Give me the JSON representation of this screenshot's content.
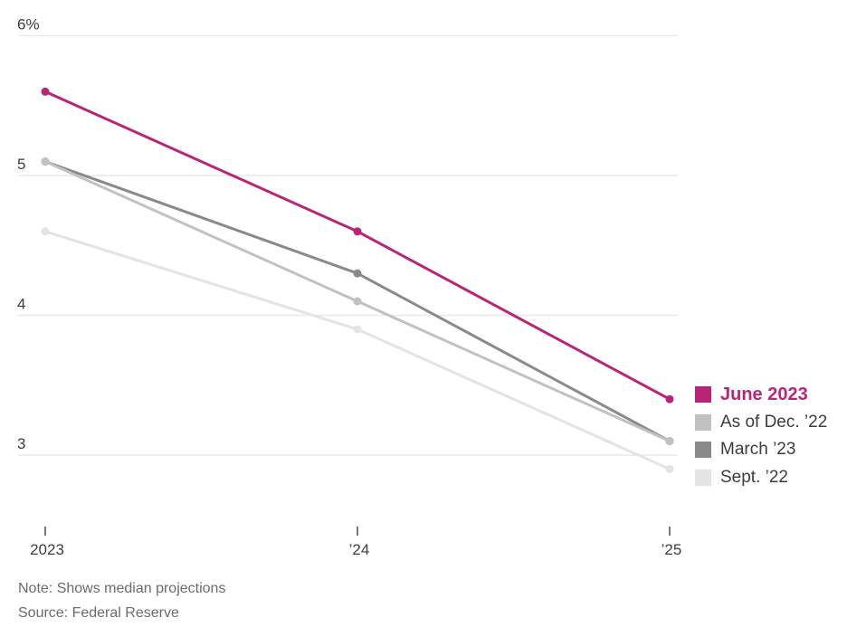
{
  "chart_data": {
    "type": "line",
    "title": "",
    "xlabel": "",
    "ylabel": "",
    "categories": [
      "2023",
      "’24",
      "’25"
    ],
    "ylim": [
      3,
      6
    ],
    "yticks": [
      6,
      5,
      4,
      3
    ],
    "ytick_labels": [
      "6%",
      "5",
      "4",
      "3"
    ],
    "grid": true,
    "legend_position": "right",
    "draw_order": [
      3,
      2,
      1,
      0
    ],
    "series": [
      {
        "name": "June 2023",
        "values": [
          5.6,
          4.6,
          3.4
        ],
        "color": "#ba2478",
        "emphasis": true
      },
      {
        "name": "As of Dec. ’22",
        "values": [
          5.1,
          4.1,
          3.1
        ],
        "color": "#c1c1c1",
        "emphasis": false
      },
      {
        "name": "March ’23",
        "values": [
          5.1,
          4.3,
          3.1
        ],
        "color": "#8a8a8a",
        "emphasis": false
      },
      {
        "name": "Sept. ’22",
        "values": [
          4.6,
          3.9,
          2.9
        ],
        "color": "#e4e4e4",
        "emphasis": false
      }
    ]
  },
  "colors": {
    "gridline": "#e9e9e9",
    "axis_text": "#3d3d3d",
    "tick": "#4a4a4a",
    "footer_text": "#6b6b6b"
  },
  "footer": {
    "note": "Note: Shows median projections",
    "source": "Source: Federal Reserve"
  }
}
